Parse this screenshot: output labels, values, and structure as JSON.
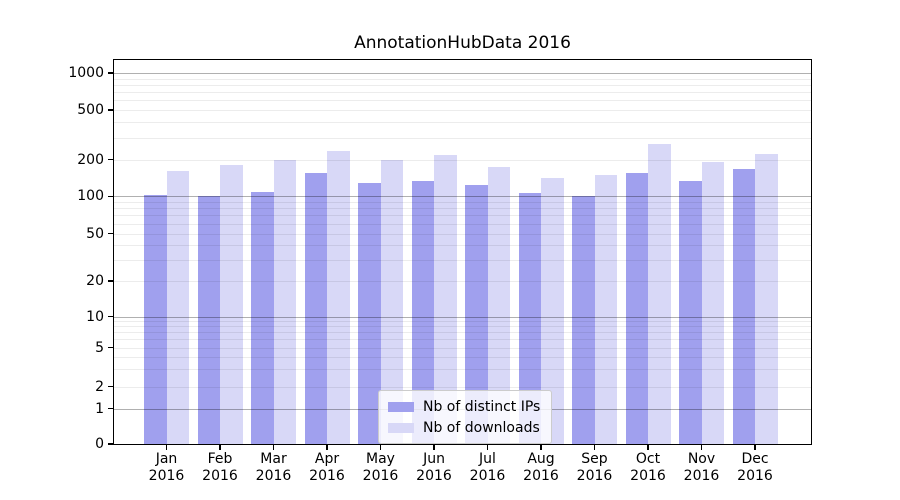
{
  "chart_data": {
    "type": "bar",
    "title": "AnnotationHubData 2016",
    "y_scale": "symlog",
    "ylim": [
      0,
      1000
    ],
    "grid": true,
    "yticks": [
      0,
      1,
      2,
      5,
      10,
      20,
      50,
      100,
      200,
      500,
      1000
    ],
    "categories": [
      "Jan",
      "Feb",
      "Mar",
      "Apr",
      "May",
      "Jun",
      "Jul",
      "Aug",
      "Sep",
      "Oct",
      "Nov",
      "Dec"
    ],
    "category_year": "2016",
    "legend_position": "lower center",
    "series": [
      {
        "name": "Nb of distinct IPs",
        "color": "#a0a0ee",
        "values": [
          103,
          100,
          109,
          155,
          128,
          134,
          124,
          106,
          100,
          155,
          134,
          167
        ]
      },
      {
        "name": "Nb of downloads",
        "color": "#d8d8f7",
        "values": [
          160,
          181,
          200,
          235,
          200,
          217,
          175,
          141,
          150,
          267,
          190,
          221
        ]
      }
    ]
  }
}
